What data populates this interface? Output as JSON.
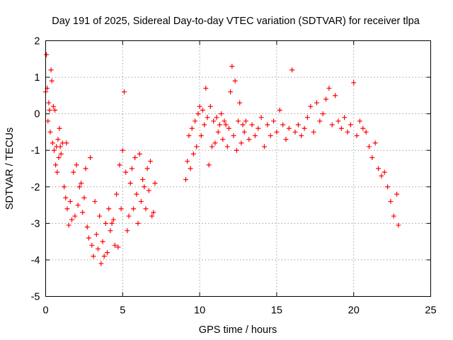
{
  "chart_data": {
    "type": "scatter",
    "title": "Day 191 of 2025, Sidereal Day-to-day VTEC variation (SDTVAR) for receiver tlpa",
    "xlabel": "GPS time / hours",
    "ylabel": "SDTVAR / TECUs",
    "xlim": [
      0,
      25
    ],
    "ylim": [
      -5,
      2
    ],
    "xticks": [
      "0",
      "5",
      "10",
      "15",
      "20",
      "25"
    ],
    "yticks": [
      "-5",
      "-4",
      "-3",
      "-2",
      "-1",
      "0",
      "1",
      "2"
    ],
    "grid": true,
    "marker": "plus",
    "color": "#ff0000",
    "series": [
      {
        "name": "SDTVAR",
        "x": [
          0.0,
          0.05,
          0.1,
          0.15,
          0.2,
          0.25,
          0.3,
          0.35,
          0.4,
          0.45,
          0.5,
          0.55,
          0.6,
          0.65,
          0.7,
          0.75,
          0.8,
          0.85,
          0.9,
          0.95,
          1.0,
          1.1,
          1.2,
          1.3,
          1.35,
          1.4,
          1.5,
          1.6,
          1.7,
          1.8,
          1.9,
          2.0,
          2.1,
          2.2,
          2.3,
          2.4,
          2.5,
          2.6,
          2.7,
          2.8,
          2.9,
          3.0,
          3.1,
          3.2,
          3.3,
          3.4,
          3.5,
          3.6,
          3.7,
          3.8,
          3.9,
          4.0,
          4.1,
          4.2,
          4.3,
          4.4,
          4.5,
          4.6,
          4.7,
          4.8,
          4.9,
          5.0,
          5.1,
          5.2,
          5.3,
          5.4,
          5.5,
          5.6,
          5.7,
          5.8,
          5.9,
          6.0,
          6.1,
          6.2,
          6.3,
          6.4,
          6.5,
          6.6,
          6.7,
          6.8,
          6.9,
          7.0,
          7.1,
          9.1,
          9.2,
          9.3,
          9.4,
          9.5,
          9.6,
          9.7,
          9.8,
          9.9,
          10.0,
          10.1,
          10.2,
          10.3,
          10.4,
          10.5,
          10.6,
          10.7,
          10.8,
          10.9,
          11.0,
          11.1,
          11.2,
          11.3,
          11.4,
          11.5,
          11.6,
          11.7,
          11.8,
          11.9,
          12.0,
          12.1,
          12.2,
          12.3,
          12.4,
          12.5,
          12.6,
          12.7,
          12.8,
          12.9,
          13.0,
          13.2,
          13.4,
          13.6,
          13.8,
          14.0,
          14.2,
          14.4,
          14.6,
          14.8,
          15.0,
          15.2,
          15.4,
          15.6,
          15.8,
          16.0,
          16.2,
          16.4,
          16.6,
          16.8,
          17.0,
          17.2,
          17.4,
          17.6,
          17.8,
          18.0,
          18.2,
          18.4,
          18.6,
          18.8,
          19.0,
          19.2,
          19.4,
          19.6,
          19.8,
          20.0,
          20.2,
          20.4,
          20.6,
          20.8,
          21.0,
          21.2,
          21.4,
          21.6,
          21.8,
          22.0,
          22.2,
          22.4,
          22.6,
          22.8,
          22.9
        ],
        "y": [
          0.6,
          1.62,
          0.7,
          -0.2,
          0.3,
          0.1,
          -0.5,
          1.2,
          0.9,
          -0.8,
          0.2,
          -1.0,
          0.1,
          -1.4,
          -0.9,
          -1.6,
          -0.7,
          -1.2,
          -0.4,
          -0.9,
          -1.1,
          -0.8,
          -2.0,
          -2.3,
          -0.8,
          -2.6,
          -3.05,
          -2.4,
          -2.9,
          -1.6,
          -2.8,
          -1.4,
          -2.5,
          -2.0,
          -1.9,
          -2.7,
          -2.3,
          -1.5,
          -3.1,
          -3.4,
          -1.2,
          -3.6,
          -3.9,
          -2.4,
          -3.3,
          -3.7,
          -2.8,
          -4.1,
          -3.5,
          -3.9,
          -3.0,
          -3.8,
          -2.6,
          -3.2,
          -3.0,
          -2.9,
          -3.6,
          -2.2,
          -3.65,
          -1.4,
          -2.6,
          -1.0,
          0.6,
          -1.6,
          -3.2,
          -2.8,
          -1.9,
          -1.5,
          -2.6,
          -1.2,
          -2.2,
          -3.0,
          -1.1,
          -2.4,
          -1.8,
          -2.0,
          -2.6,
          -1.5,
          -2.1,
          -1.3,
          -2.8,
          -2.7,
          -1.9,
          -1.8,
          -1.3,
          -0.6,
          -1.5,
          -0.4,
          -1.1,
          -0.2,
          -0.9,
          0.0,
          0.2,
          -0.6,
          0.1,
          -0.3,
          0.7,
          -0.1,
          -1.4,
          0.2,
          -0.9,
          -0.2,
          -0.8,
          -0.1,
          -0.5,
          -0.3,
          0.0,
          -0.7,
          -0.2,
          -0.3,
          -0.9,
          -0.4,
          0.6,
          1.3,
          -0.6,
          0.9,
          -1.0,
          -0.2,
          0.3,
          -0.8,
          -0.3,
          -0.5,
          -0.2,
          -0.7,
          -0.3,
          -0.6,
          -0.4,
          -0.1,
          -0.9,
          -0.3,
          -0.6,
          -0.2,
          -0.5,
          0.1,
          -0.3,
          -0.7,
          -0.4,
          1.2,
          -0.5,
          -0.3,
          -0.6,
          -0.4,
          -0.1,
          0.2,
          -0.5,
          0.3,
          -0.2,
          0.0,
          0.4,
          0.7,
          -0.3,
          0.5,
          -0.2,
          -0.4,
          -0.1,
          -0.5,
          -0.3,
          0.85,
          -0.6,
          -0.2,
          -0.4,
          -0.5,
          -0.9,
          -1.2,
          -0.8,
          -1.5,
          -1.7,
          -1.6,
          -2.0,
          -2.4,
          -2.8,
          -2.2,
          -3.05
        ]
      }
    ]
  }
}
